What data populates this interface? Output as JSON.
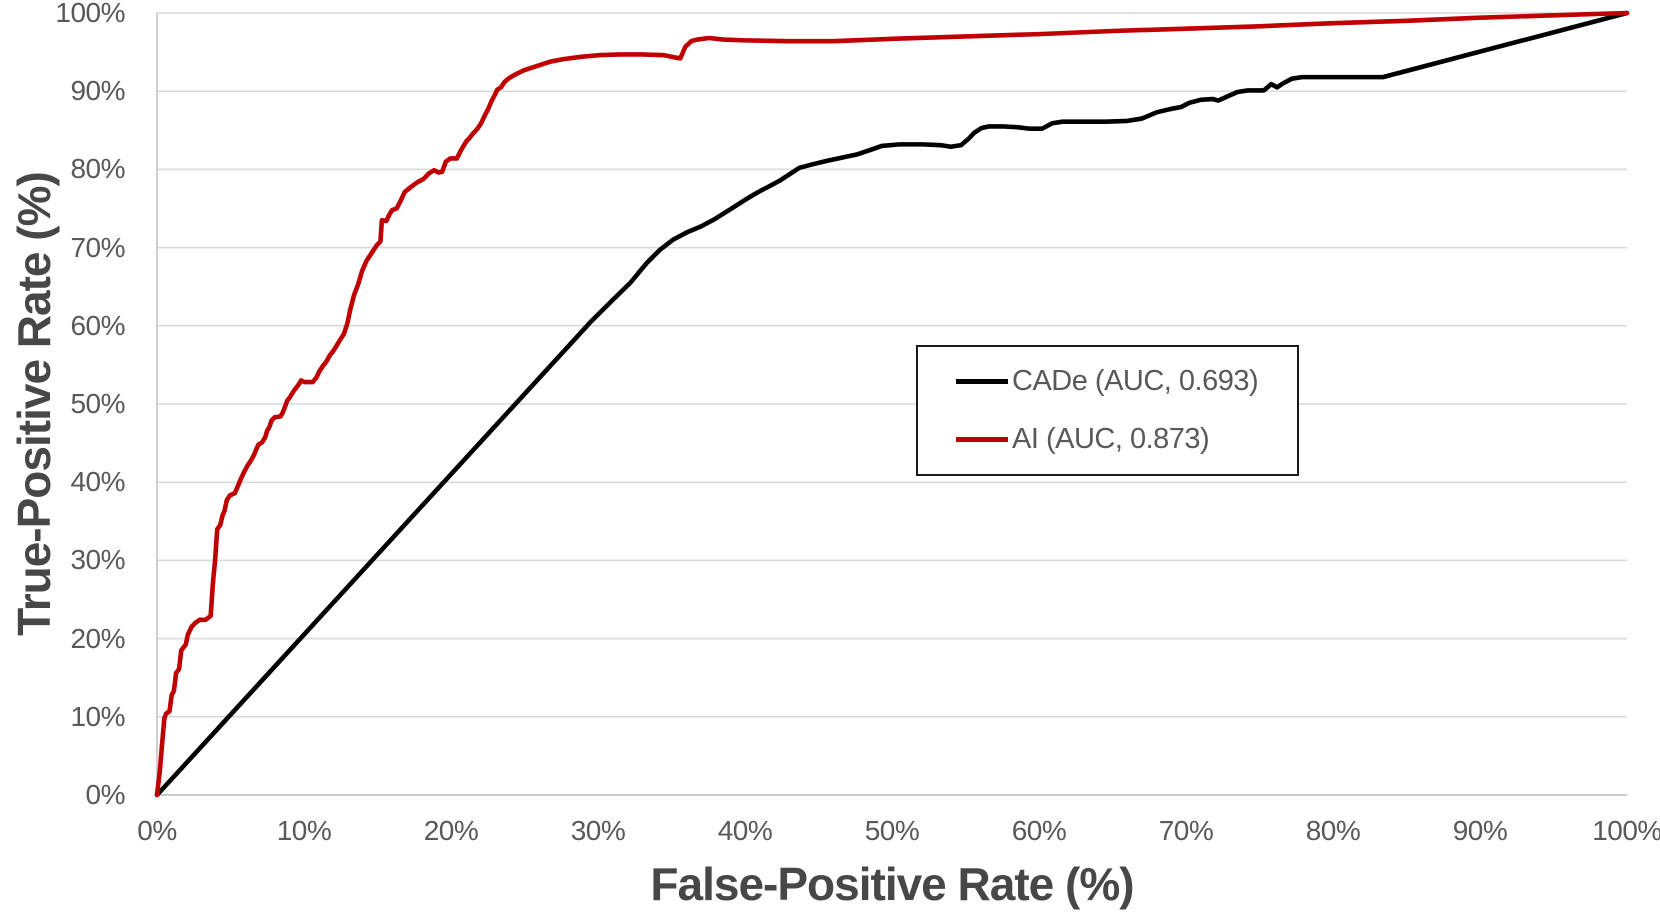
{
  "legend": {
    "items": [
      {
        "label": "CADe (AUC, 0.693)",
        "series": "CADe",
        "color": "#000000"
      },
      {
        "label": "AI (AUC, 0.873)",
        "series": "AI",
        "color": "#C00000"
      }
    ]
  },
  "colors": {
    "cade_line": "#000000",
    "ai_line": "#C00000",
    "gridline": "#D9D9D9",
    "axis_line": "#BFBFBF",
    "tick_text": "#595959",
    "title_text": "#474747",
    "legend_border": "#1A1A1A",
    "background": "#FFFFFF"
  },
  "chart_data": {
    "type": "line",
    "title": "",
    "xlabel": "False-Positive Rate (%)",
    "ylabel": "True-Positive Rate (%)",
    "xlim": [
      0,
      100
    ],
    "ylim": [
      0,
      100
    ],
    "grid": "horizontal-only",
    "legend_position": "center-right",
    "x_ticks": [
      "0%",
      "10%",
      "20%",
      "30%",
      "40%",
      "50%",
      "60%",
      "70%",
      "80%",
      "90%",
      "100%"
    ],
    "y_ticks": [
      "0%",
      "10%",
      "20%",
      "30%",
      "40%",
      "50%",
      "60%",
      "70%",
      "80%",
      "90%",
      "100%"
    ],
    "series": [
      {
        "name": "CADe",
        "auc": 0.693,
        "color": "#000000",
        "points": [
          [
            0,
            0
          ],
          [
            29.5,
            60.5
          ],
          [
            31,
            63.3
          ],
          [
            32.2,
            65.5
          ],
          [
            33.3,
            68
          ],
          [
            34.2,
            69.7
          ],
          [
            35.1,
            71
          ],
          [
            36.1,
            72
          ],
          [
            37,
            72.7
          ],
          [
            37.9,
            73.6
          ],
          [
            39,
            74.9
          ],
          [
            40,
            76.1
          ],
          [
            40.8,
            77
          ],
          [
            41.6,
            77.8
          ],
          [
            42.4,
            78.6
          ],
          [
            43.7,
            80.2
          ],
          [
            44.7,
            80.7
          ],
          [
            45.6,
            81.1
          ],
          [
            47.6,
            81.9
          ],
          [
            48.7,
            82.6
          ],
          [
            49.3,
            83
          ],
          [
            50.5,
            83.2
          ],
          [
            52.1,
            83.2
          ],
          [
            53.3,
            83.1
          ],
          [
            54,
            82.9
          ],
          [
            54.7,
            83.1
          ],
          [
            55.2,
            83.9
          ],
          [
            55.6,
            84.7
          ],
          [
            56.1,
            85.3
          ],
          [
            56.6,
            85.5
          ],
          [
            57.5,
            85.5
          ],
          [
            58.5,
            85.4
          ],
          [
            59.4,
            85.2
          ],
          [
            60.2,
            85.2
          ],
          [
            60.9,
            85.9
          ],
          [
            61.6,
            86.1
          ],
          [
            63,
            86.1
          ],
          [
            64.5,
            86.1
          ],
          [
            66,
            86.2
          ],
          [
            67,
            86.5
          ],
          [
            68,
            87.3
          ],
          [
            68.9,
            87.7
          ],
          [
            69.7,
            88
          ],
          [
            70.2,
            88.5
          ],
          [
            71,
            88.9
          ],
          [
            71.8,
            89
          ],
          [
            72.2,
            88.8
          ],
          [
            72.9,
            89.4
          ],
          [
            73.5,
            89.9
          ],
          [
            74.2,
            90.1
          ],
          [
            75.3,
            90.1
          ],
          [
            75.8,
            90.9
          ],
          [
            76.2,
            90.5
          ],
          [
            76.6,
            91
          ],
          [
            77.2,
            91.6
          ],
          [
            77.9,
            91.8
          ],
          [
            80,
            91.8
          ],
          [
            82,
            91.8
          ],
          [
            83.4,
            91.8
          ],
          [
            100,
            100
          ]
        ]
      },
      {
        "name": "AI",
        "auc": 0.873,
        "color": "#C00000",
        "points": [
          [
            0,
            0
          ],
          [
            0.2,
            3.2
          ],
          [
            0.35,
            6.6
          ],
          [
            0.5,
            9.8
          ],
          [
            0.62,
            10.4
          ],
          [
            0.85,
            10.7
          ],
          [
            1,
            12.8
          ],
          [
            1.15,
            13.3
          ],
          [
            1.3,
            15.6
          ],
          [
            1.5,
            16.1
          ],
          [
            1.65,
            18.5
          ],
          [
            1.95,
            19.2
          ],
          [
            2.1,
            20.5
          ],
          [
            2.35,
            21.5
          ],
          [
            2.6,
            22
          ],
          [
            2.9,
            22.4
          ],
          [
            3.3,
            22.4
          ],
          [
            3.65,
            22.9
          ],
          [
            3.8,
            27
          ],
          [
            3.95,
            30
          ],
          [
            4.1,
            34
          ],
          [
            4.3,
            34.5
          ],
          [
            4.45,
            35.7
          ],
          [
            4.6,
            36.4
          ],
          [
            4.75,
            37.7
          ],
          [
            4.95,
            38.3
          ],
          [
            5.3,
            38.6
          ],
          [
            5.5,
            39.5
          ],
          [
            5.7,
            40.4
          ],
          [
            5.95,
            41.4
          ],
          [
            6.15,
            42.1
          ],
          [
            6.4,
            42.8
          ],
          [
            6.6,
            43.5
          ],
          [
            6.75,
            44.2
          ],
          [
            6.9,
            44.8
          ],
          [
            7.15,
            45.1
          ],
          [
            7.35,
            45.7
          ],
          [
            7.5,
            46.6
          ],
          [
            7.65,
            47.1
          ],
          [
            7.8,
            47.9
          ],
          [
            8,
            48.3
          ],
          [
            8.4,
            48.4
          ],
          [
            8.55,
            48.9
          ],
          [
            8.7,
            49.6
          ],
          [
            8.85,
            50.4
          ],
          [
            9.05,
            50.9
          ],
          [
            9.35,
            51.8
          ],
          [
            9.6,
            52.4
          ],
          [
            9.8,
            53
          ],
          [
            10.05,
            52.8
          ],
          [
            10.6,
            52.8
          ],
          [
            10.85,
            53.4
          ],
          [
            11.05,
            54.2
          ],
          [
            11.3,
            54.9
          ],
          [
            11.55,
            55.5
          ],
          [
            11.75,
            56.2
          ],
          [
            12,
            56.8
          ],
          [
            12.2,
            57.4
          ],
          [
            12.45,
            58.2
          ],
          [
            12.7,
            58.9
          ],
          [
            12.95,
            60.3
          ],
          [
            13.15,
            62.1
          ],
          [
            13.4,
            63.9
          ],
          [
            13.7,
            65.4
          ],
          [
            13.95,
            67
          ],
          [
            14.25,
            68.3
          ],
          [
            14.6,
            69.3
          ],
          [
            14.95,
            70.3
          ],
          [
            15.2,
            70.8
          ],
          [
            15.3,
            73.5
          ],
          [
            15.6,
            73.4
          ],
          [
            15.8,
            74.2
          ],
          [
            16,
            74.8
          ],
          [
            16.3,
            75
          ],
          [
            16.55,
            75.9
          ],
          [
            16.85,
            77.1
          ],
          [
            17.3,
            77.8
          ],
          [
            17.75,
            78.4
          ],
          [
            18.15,
            78.8
          ],
          [
            18.5,
            79.5
          ],
          [
            18.85,
            79.9
          ],
          [
            19.15,
            79.6
          ],
          [
            19.4,
            79.7
          ],
          [
            19.65,
            81
          ],
          [
            19.95,
            81.4
          ],
          [
            20.4,
            81.4
          ],
          [
            20.75,
            82.7
          ],
          [
            21.05,
            83.6
          ],
          [
            21.25,
            84
          ],
          [
            21.5,
            84.6
          ],
          [
            21.8,
            85.2
          ],
          [
            22.05,
            85.9
          ],
          [
            22.3,
            86.9
          ],
          [
            22.55,
            87.8
          ],
          [
            22.75,
            88.7
          ],
          [
            23,
            89.6
          ],
          [
            23.15,
            90.2
          ],
          [
            23.4,
            90.5
          ],
          [
            23.65,
            91.2
          ],
          [
            23.9,
            91.6
          ],
          [
            24.15,
            91.9
          ],
          [
            24.55,
            92.3
          ],
          [
            25,
            92.7
          ],
          [
            25.5,
            93
          ],
          [
            26.15,
            93.4
          ],
          [
            26.8,
            93.8
          ],
          [
            27.65,
            94.1
          ],
          [
            28.85,
            94.4
          ],
          [
            30,
            94.6
          ],
          [
            31.5,
            94.7
          ],
          [
            33,
            94.7
          ],
          [
            34.5,
            94.6
          ],
          [
            35.3,
            94.3
          ],
          [
            35.6,
            94.2
          ],
          [
            35.95,
            95.7
          ],
          [
            36.35,
            96.4
          ],
          [
            36.75,
            96.6
          ],
          [
            37.55,
            96.8
          ],
          [
            38.55,
            96.6
          ],
          [
            40,
            96.5
          ],
          [
            43,
            96.4
          ],
          [
            46,
            96.4
          ],
          [
            50,
            96.7
          ],
          [
            55,
            97
          ],
          [
            60,
            97.3
          ],
          [
            65,
            97.7
          ],
          [
            70,
            98
          ],
          [
            75,
            98.3
          ],
          [
            80,
            98.7
          ],
          [
            85,
            99
          ],
          [
            90,
            99.4
          ],
          [
            95,
            99.7
          ],
          [
            100,
            100
          ]
        ]
      }
    ]
  }
}
